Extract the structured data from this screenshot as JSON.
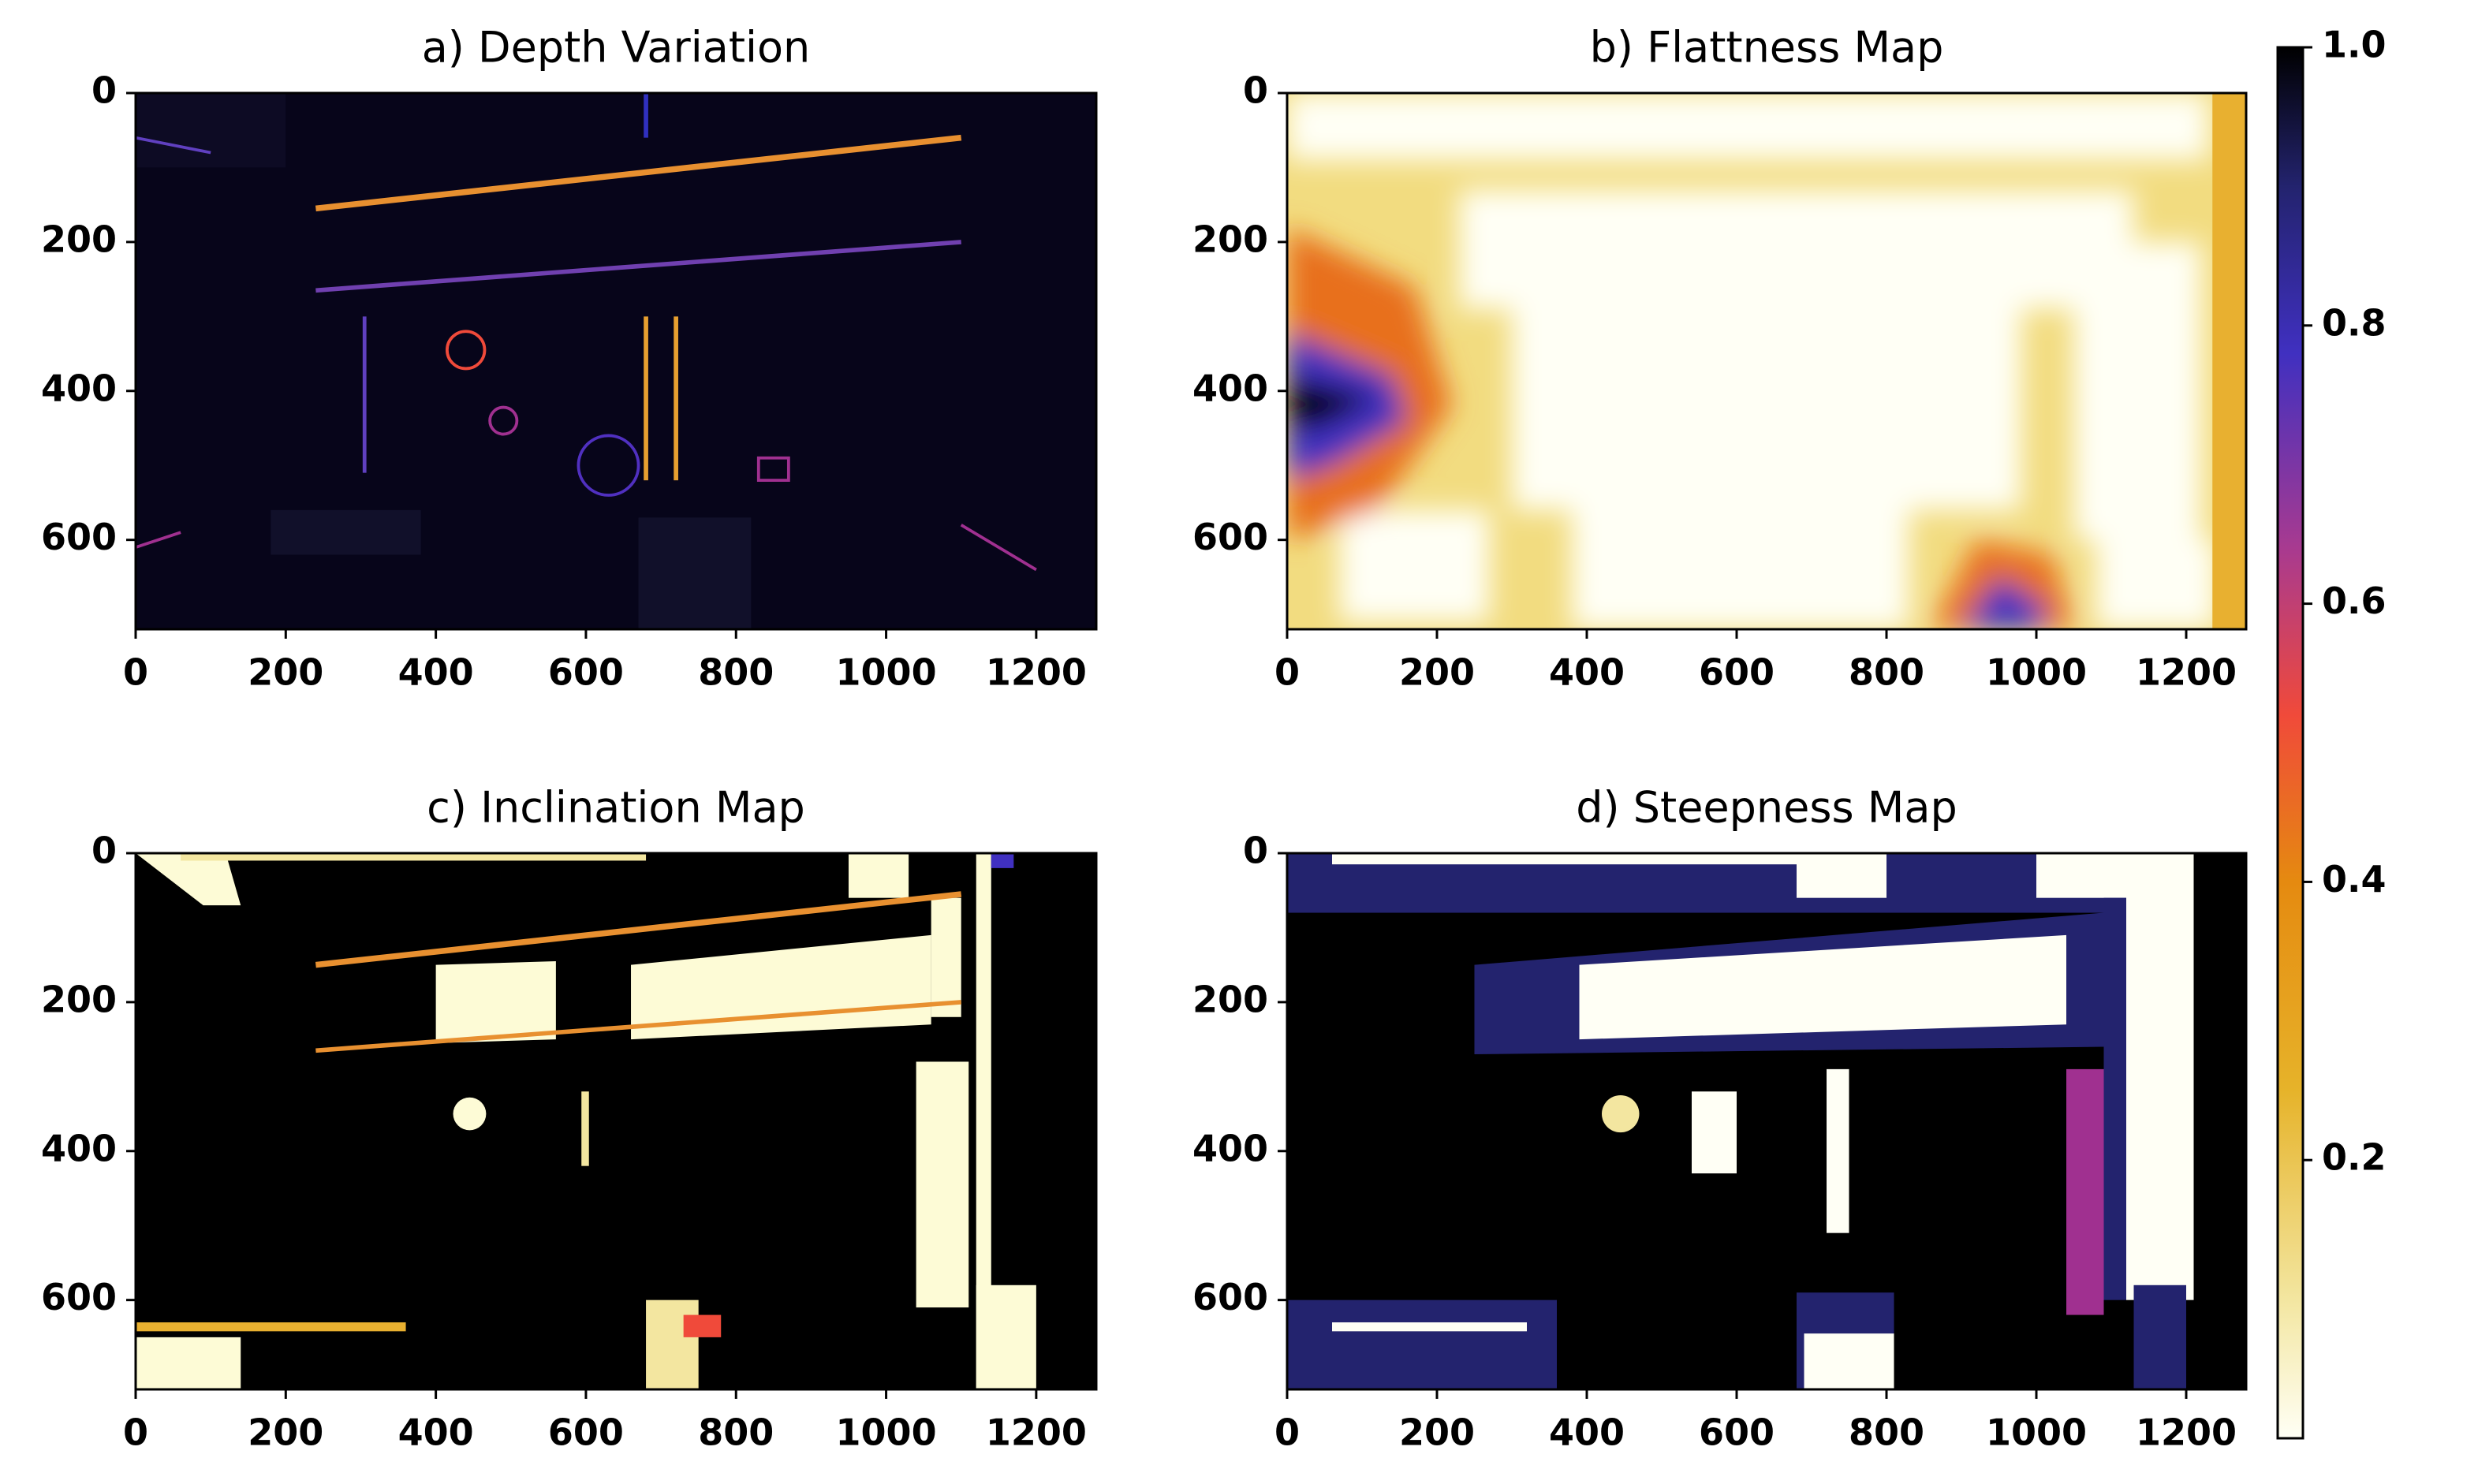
{
  "chart_data": [
    {
      "type": "image",
      "title": "a) Depth Variation",
      "xlim": [
        0,
        1280
      ],
      "ylim": [
        720,
        0
      ],
      "xticks": [
        0,
        200,
        400,
        600,
        800,
        1000,
        1200
      ],
      "yticks": [
        0,
        200,
        400,
        600
      ]
    },
    {
      "type": "image",
      "title": "b) Flattness Map",
      "xlim": [
        0,
        1280
      ],
      "ylim": [
        720,
        0
      ],
      "xticks": [
        0,
        200,
        400,
        600,
        800,
        1000,
        1200
      ],
      "yticks": [
        0,
        200,
        400,
        600
      ]
    },
    {
      "type": "image",
      "title": "c) Inclination Map",
      "xlim": [
        0,
        1280
      ],
      "ylim": [
        720,
        0
      ],
      "xticks": [
        0,
        200,
        400,
        600,
        800,
        1000,
        1200
      ],
      "yticks": [
        0,
        200,
        400,
        600
      ]
    },
    {
      "type": "image",
      "title": "d) Steepness Map",
      "xlim": [
        0,
        1280
      ],
      "ylim": [
        720,
        0
      ],
      "xticks": [
        0,
        200,
        400,
        600,
        800,
        1000,
        1200
      ],
      "yticks": [
        0,
        200,
        400,
        600
      ]
    },
    {
      "type": "colorbar",
      "ylim": [
        0,
        1
      ],
      "yticks": [
        0.2,
        0.4,
        0.6,
        0.8,
        {
          "value": 1,
          "label": "1.0"
        }
      ]
    }
  ]
}
